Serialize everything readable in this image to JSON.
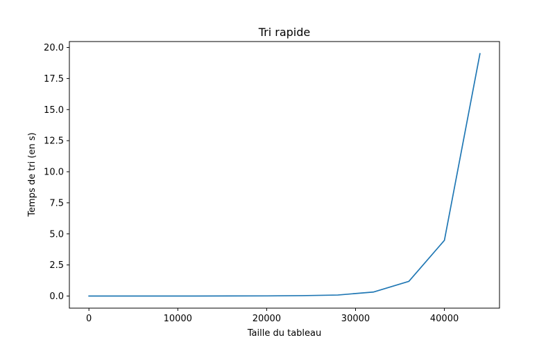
{
  "chart_data": {
    "type": "line",
    "title": "Tri rapide",
    "xlabel": "Taille du tableau",
    "ylabel": "Temps de tri (en s)",
    "xlim": [
      -2200,
      46200
    ],
    "ylim": [
      -0.975,
      20.475
    ],
    "x_ticks": [
      0,
      10000,
      20000,
      30000,
      40000
    ],
    "x_tick_labels": [
      "0",
      "10000",
      "20000",
      "30000",
      "40000"
    ],
    "y_ticks": [
      0.0,
      2.5,
      5.0,
      7.5,
      10.0,
      12.5,
      15.0,
      17.5,
      20.0
    ],
    "y_tick_labels": [
      "0.0",
      "2.5",
      "5.0",
      "7.5",
      "10.0",
      "12.5",
      "15.0",
      "17.5",
      "20.0"
    ],
    "grid": false,
    "legend": "none",
    "series": [
      {
        "color": "#1f77b4",
        "x": [
          0,
          4000,
          8000,
          12000,
          16000,
          20000,
          24000,
          28000,
          32000,
          36000,
          40000,
          44000
        ],
        "y": [
          0.0,
          0.0,
          0.0,
          0.0,
          0.005,
          0.01,
          0.03,
          0.08,
          0.32,
          1.18,
          4.48,
          19.5
        ]
      }
    ]
  }
}
